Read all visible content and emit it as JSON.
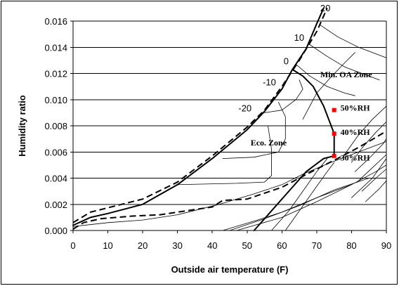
{
  "chart_data": {
    "type": "line",
    "xlabel": "Outside air temperature (F)",
    "ylabel": "Humidity ratio",
    "xlim": [
      0,
      90
    ],
    "ylim": [
      0,
      0.016
    ],
    "x_ticks": [
      0,
      10,
      20,
      30,
      40,
      50,
      60,
      70,
      80,
      90
    ],
    "y_ticks": [
      "0.000",
      "0.002",
      "0.004",
      "0.006",
      "0.008",
      "0.010",
      "0.012",
      "0.014",
      "0.016"
    ],
    "y_tick_values": [
      0,
      0.002,
      0.004,
      0.006,
      0.008,
      0.01,
      0.012,
      0.014,
      0.016
    ],
    "grid": "horizontal",
    "series": [
      {
        "role": "saturation-curve",
        "style": "thick-solid",
        "points": [
          [
            0,
            0.0004
          ],
          [
            5,
            0.001
          ],
          [
            10,
            0.0013
          ],
          [
            20,
            0.002
          ],
          [
            30,
            0.0035
          ],
          [
            40,
            0.0055
          ],
          [
            50,
            0.0077
          ],
          [
            55,
            0.0091
          ],
          [
            60,
            0.0108
          ],
          [
            63,
            0.0123
          ],
          [
            67,
            0.0139
          ],
          [
            70,
            0.0158
          ],
          [
            72,
            0.017
          ]
        ]
      },
      {
        "role": "saturation-offset",
        "style": "thick-dashed",
        "points": [
          [
            0,
            0.0006
          ],
          [
            5,
            0.0014
          ],
          [
            20,
            0.0024
          ],
          [
            30,
            0.0037
          ],
          [
            40,
            0.0057
          ],
          [
            50,
            0.0079
          ],
          [
            55,
            0.0092
          ],
          [
            60,
            0.011
          ],
          [
            65,
            0.013
          ],
          [
            70,
            0.0152
          ],
          [
            73,
            0.017
          ]
        ]
      },
      {
        "role": "zone-boundary",
        "style": "thick-solid",
        "points": [
          [
            52,
            0
          ],
          [
            57,
            0.0015
          ],
          [
            62,
            0.003
          ],
          [
            67,
            0.0045
          ],
          [
            72,
            0.0055
          ],
          [
            75,
            0.0057
          ],
          [
            75,
            0.0074
          ],
          [
            72,
            0.0095
          ],
          [
            69,
            0.011
          ],
          [
            66,
            0.0118
          ],
          [
            63,
            0.0123
          ]
        ]
      },
      {
        "role": "lower-dashed",
        "style": "thick-dashed",
        "points": [
          [
            0,
            0.0001
          ],
          [
            3,
            0.0006
          ],
          [
            8,
            0.0009
          ],
          [
            17,
            0.0011
          ],
          [
            25,
            0.0012
          ],
          [
            40,
            0.0018
          ],
          [
            43,
            0.0023
          ],
          [
            50,
            0.0024
          ],
          [
            60,
            0.0033
          ],
          [
            65,
            0.004
          ],
          [
            70,
            0.0047
          ],
          [
            76,
            0.0055
          ],
          [
            81,
            0.0062
          ],
          [
            85,
            0.0068
          ],
          [
            90,
            0.0076
          ]
        ]
      },
      {
        "role": "thin-isoline",
        "style": "thin",
        "points": [
          [
            0,
            0.0003
          ],
          [
            10,
            0.0006
          ],
          [
            20,
            0.0008
          ],
          [
            30,
            0.0012
          ],
          [
            42,
            0.002
          ],
          [
            52,
            0.0028
          ],
          [
            60,
            0.0035
          ],
          [
            66,
            0.0043
          ],
          [
            74,
            0.0052
          ],
          [
            84,
            0.0062
          ],
          [
            90,
            0.0068
          ]
        ]
      },
      {
        "role": "thin-isoline",
        "style": "thin",
        "points": [
          [
            47,
            0
          ],
          [
            60,
            0.001
          ],
          [
            70,
            0.0022
          ],
          [
            80,
            0.0035
          ],
          [
            87,
            0.0045
          ],
          [
            90,
            0.005
          ]
        ]
      },
      {
        "role": "thin-isoline",
        "style": "thin",
        "points": [
          [
            45,
            0
          ],
          [
            55,
            0.0009
          ],
          [
            65,
            0.0019
          ],
          [
            75,
            0.0031
          ],
          [
            85,
            0.004
          ]
        ]
      },
      {
        "role": "thin-isoline",
        "style": "thin",
        "points": [
          [
            43,
            0
          ],
          [
            53,
            0.0008
          ],
          [
            60,
            0.0014
          ],
          [
            70,
            0.0025
          ],
          [
            80,
            0.0035
          ]
        ]
      },
      {
        "role": "thin-isoline",
        "style": "thin",
        "points": [
          [
            80,
            0.0025
          ],
          [
            86,
            0.004
          ],
          [
            90,
            0.0055
          ]
        ]
      },
      {
        "role": "thin-isoline",
        "style": "thin",
        "points": [
          [
            57,
            0
          ],
          [
            62,
            0.0015
          ],
          [
            66,
            0.003
          ],
          [
            70,
            0.0045
          ],
          [
            73,
            0.0055
          ]
        ]
      },
      {
        "role": "thin-isoline",
        "style": "thin",
        "points": [
          [
            61,
            0
          ],
          [
            65,
            0.0015
          ],
          [
            69,
            0.003
          ],
          [
            73,
            0.0045
          ],
          [
            75,
            0.0052
          ]
        ]
      },
      {
        "role": "thin-isoline",
        "style": "thin",
        "points": [
          [
            30,
            0.0035
          ],
          [
            47,
            0.0036
          ],
          [
            55,
            0.0037
          ],
          [
            57,
            0.0042
          ],
          [
            57,
            0.0062
          ],
          [
            56,
            0.008
          ]
        ]
      },
      {
        "role": "thin-isoline",
        "style": "thin",
        "points": [
          [
            43,
            0.0055
          ],
          [
            52,
            0.0056
          ],
          [
            59,
            0.006
          ],
          [
            61,
            0.007
          ],
          [
            61,
            0.0087
          ],
          [
            59,
            0.0098
          ]
        ]
      },
      {
        "role": "thin-isoline",
        "style": "thin",
        "points": [
          [
            55,
            0.009
          ],
          [
            60,
            0.0092
          ],
          [
            64,
            0.01
          ],
          [
            66,
            0.0108
          ],
          [
            65,
            0.0115
          ]
        ]
      },
      {
        "role": "thin-isoline",
        "style": "thin",
        "points": [
          [
            64,
            0.0127
          ],
          [
            68,
            0.0118
          ],
          [
            73,
            0.011
          ],
          [
            78,
            0.0105
          ],
          [
            81,
            0.0103
          ]
        ]
      },
      {
        "role": "thin-isoline",
        "style": "thin",
        "points": [
          [
            68,
            0.0142
          ],
          [
            73,
            0.0133
          ],
          [
            78,
            0.0125
          ],
          [
            84,
            0.0119
          ],
          [
            88,
            0.0115
          ]
        ]
      },
      {
        "role": "thin-isoline",
        "style": "thin",
        "points": [
          [
            71,
            0.0157
          ],
          [
            76,
            0.0148
          ],
          [
            82,
            0.014
          ],
          [
            90,
            0.0132
          ]
        ]
      },
      {
        "role": "thin-isoline",
        "style": "thin",
        "points": [
          [
            66,
            0.0085
          ],
          [
            70,
            0.0105
          ],
          [
            74,
            0.0117
          ],
          [
            78,
            0.0128
          ],
          [
            81,
            0.0136
          ]
        ]
      },
      {
        "role": "thin-isoline",
        "style": "thin",
        "points": [
          [
            78,
            0.0058
          ],
          [
            82,
            0.0073
          ],
          [
            86,
            0.0085
          ],
          [
            90,
            0.0095
          ]
        ]
      },
      {
        "role": "thin-isoline",
        "style": "thin",
        "points": [
          [
            80,
            0.0052
          ],
          [
            83,
            0.0063
          ],
          [
            87,
            0.0075
          ],
          [
            90,
            0.0083
          ]
        ]
      },
      {
        "role": "thin-isoline",
        "style": "thin",
        "points": [
          [
            81,
            0.0045
          ],
          [
            85,
            0.0055
          ],
          [
            89,
            0.0066
          ],
          [
            90,
            0.007
          ]
        ]
      },
      {
        "role": "thin-isoline",
        "style": "thin",
        "points": [
          [
            82,
            0.0038
          ],
          [
            86,
            0.0048
          ],
          [
            90,
            0.0058
          ]
        ]
      },
      {
        "role": "thin-isoline",
        "style": "thin",
        "points": [
          [
            83,
            0.003
          ],
          [
            87,
            0.004
          ],
          [
            90,
            0.0047
          ]
        ]
      },
      {
        "role": "thin-isoline",
        "style": "thin",
        "points": [
          [
            84,
            0.0022
          ],
          [
            88,
            0.0032
          ],
          [
            90,
            0.0038
          ]
        ]
      }
    ],
    "markers": [
      {
        "x": 75,
        "y": 0.0092,
        "color": "#ff0000"
      },
      {
        "x": 75,
        "y": 0.0074,
        "color": "#ff0000"
      },
      {
        "x": 75,
        "y": 0.0057,
        "color": "#ff0000"
      }
    ],
    "annotations": [
      {
        "text": "20",
        "x": 71.0,
        "y": 0.01675,
        "font": "sans"
      },
      {
        "text": "10",
        "x": 63.5,
        "y": 0.0145,
        "font": "sans"
      },
      {
        "text": "0",
        "x": 60.5,
        "y": 0.0127,
        "font": "sans"
      },
      {
        "text": "-10",
        "x": 54.5,
        "y": 0.0111,
        "font": "sans"
      },
      {
        "text": "-20",
        "x": 47.5,
        "y": 0.0091,
        "font": "sans"
      },
      {
        "text": "Min. OA Zone",
        "x": 71.0,
        "y": 0.0117,
        "font": "serif"
      },
      {
        "text": "50%RH",
        "x": 76.8,
        "y": 0.00915,
        "font": "serif"
      },
      {
        "text": "40%RH",
        "x": 76.8,
        "y": 0.0073,
        "font": "serif"
      },
      {
        "text": "30%RH",
        "x": 76.8,
        "y": 0.00535,
        "font": "serif"
      },
      {
        "text": "Eco. Zone",
        "x": 51.0,
        "y": 0.0065,
        "font": "serif"
      }
    ]
  },
  "colors": {
    "grid": "#000000",
    "line": "#000000",
    "marker": "#ff0000"
  }
}
